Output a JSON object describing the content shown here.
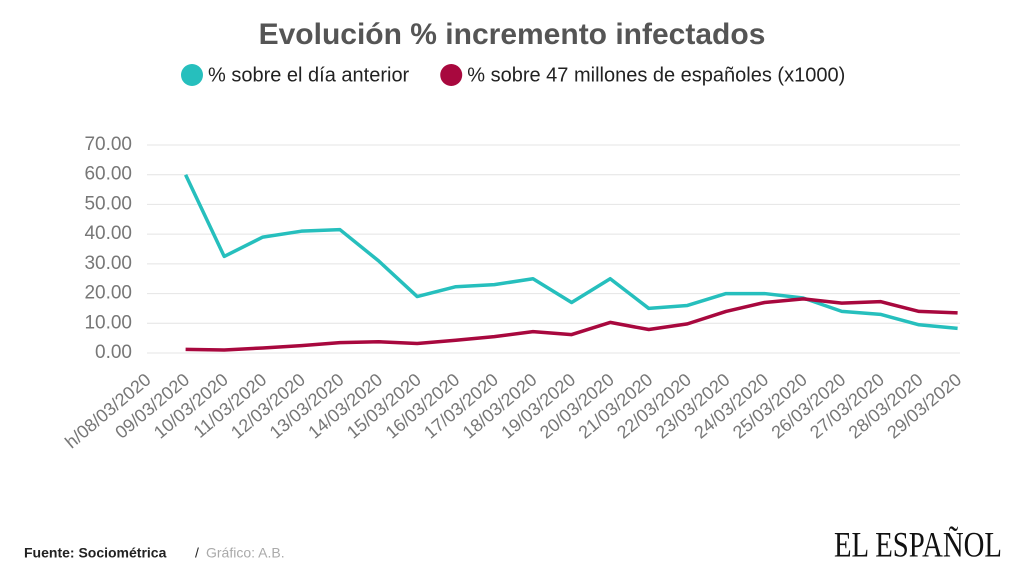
{
  "chart_data": {
    "type": "line",
    "title": "Evolución % incremento infectados",
    "categories": [
      "h/08/03/2020",
      "09/03/2020",
      "10/03/2020",
      "11/03/2020",
      "12/03/2020",
      "13/03/2020",
      "14/03/2020",
      "15/03/2020",
      "16/03/2020",
      "17/03/2020",
      "18/03/2020",
      "19/03/2020",
      "20/03/2020",
      "21/03/2020",
      "22/03/2020",
      "23/03/2020",
      "24/03/2020",
      "25/03/2020",
      "26/03/2020",
      "27/03/2020",
      "28/03/2020",
      "29/03/2020"
    ],
    "series": [
      {
        "name": "% sobre el día anterior",
        "color": "#26bfbd",
        "values": [
          null,
          60,
          32.5,
          39,
          41,
          41.5,
          31,
          19,
          22.3,
          23,
          25,
          17,
          25,
          15,
          16,
          20,
          20,
          18.5,
          14,
          13,
          9.5,
          8.3
        ]
      },
      {
        "name": "% sobre 47 millones de españoles (x1000)",
        "color": "#a8083e",
        "values": [
          null,
          1.2,
          1.0,
          1.7,
          2.5,
          3.5,
          3.8,
          3.2,
          4.3,
          5.5,
          7.2,
          6.2,
          10.3,
          7.9,
          9.8,
          14,
          17,
          18.2,
          16.8,
          17.3,
          14,
          13.5
        ]
      }
    ],
    "ylim": [
      0,
      70
    ],
    "yticks": [
      {
        "value": 0,
        "label": "0.00"
      },
      {
        "value": 10,
        "label": "10.00"
      },
      {
        "value": 20,
        "label": "20.00"
      },
      {
        "value": 30,
        "label": "30.00"
      },
      {
        "value": 40,
        "label": "40.00"
      },
      {
        "value": 50,
        "label": "50.00"
      },
      {
        "value": 60,
        "label": "60.00"
      },
      {
        "value": 70,
        "label": "70.00"
      }
    ],
    "grid": true,
    "legend": "top"
  },
  "footer": {
    "source": "Fuente: Sociométrica",
    "separator": "/",
    "credit": "Gráfico: A.B.",
    "logo": "EL ESPAÑOL"
  }
}
